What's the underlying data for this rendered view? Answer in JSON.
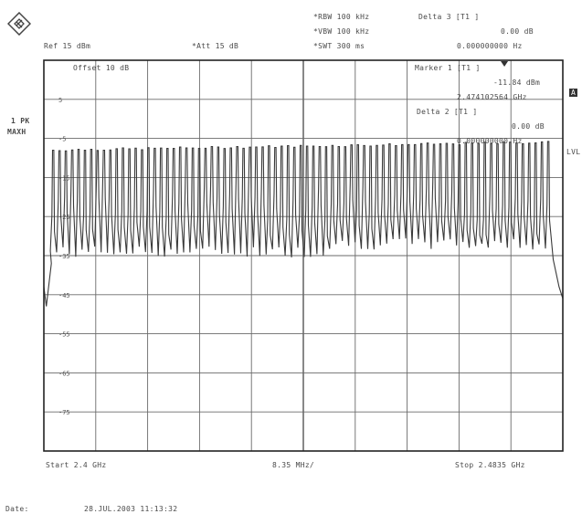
{
  "header": {
    "rbw": "*RBW 100 kHz",
    "vbw": "*VBW 100 kHz",
    "swt": "*SWT 300 ms",
    "delta_label": "Delta 3 [T1 ]",
    "delta_level": "0.00 dB",
    "delta_freq": "0.000000000 Hz",
    "ref": "Ref  15 dBm",
    "att": "*Att  15 dB"
  },
  "side": {
    "trace_mode_1": "1 PK",
    "trace_mode_2": "MAXH",
    "badge_a": "A",
    "lvl": "LVL"
  },
  "marker_box": {
    "marker_label": "Marker 1 [T1 ]",
    "m1_level": "-11.84 dBm",
    "m1_freq": "2.474102564 GHz",
    "delta2": "Delta 2 [T1 ]",
    "d2_level": "0.00 dB",
    "d2_freq": "0.000000000 Hz"
  },
  "offset": "Offset  10 dB",
  "footer": {
    "start": "Start 2.4 GHz",
    "span": "8.35 MHz/",
    "stop": "Stop 2.4835 GHz",
    "date_label": "Date:",
    "date_value": "28.JUL.2003  11:13:32"
  },
  "colors": {
    "trace": "#3a3a3a",
    "grid": "#6a6a6a",
    "frame": "#222222"
  },
  "chart_data": {
    "type": "line",
    "title": "",
    "x_unit": "GHz",
    "xlim": [
      2.4,
      2.4835
    ],
    "ylim": [
      -85,
      15
    ],
    "grid": true,
    "ytick_values": [
      5,
      -5,
      -15,
      -25,
      -35,
      -45,
      -55,
      -65,
      -75
    ],
    "ytick_labels": [
      "5",
      "-5",
      "-15",
      "-25",
      "-35",
      "-45",
      "-55",
      "-65",
      "-75"
    ],
    "series": [
      {
        "peak_count": 79,
        "peak_level_dbm_start": -8,
        "peak_level_dbm_end": -6,
        "valley_level_dbm": -34,
        "skirt_level_dbm": -43
      }
    ]
  }
}
